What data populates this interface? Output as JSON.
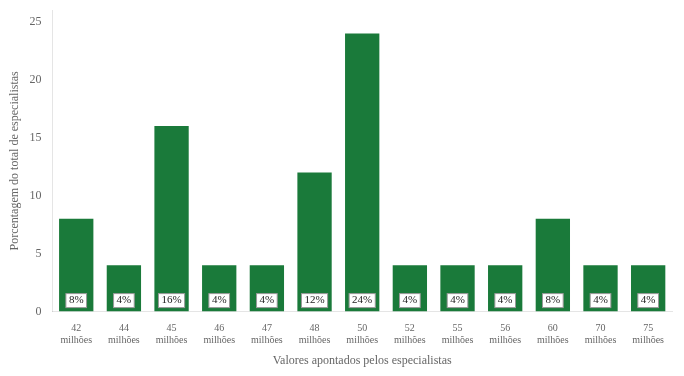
{
  "chart_data": {
    "type": "bar",
    "categories": [
      "42\nmilhões",
      "44\nmilhões",
      "45\nmilhões",
      "46\nmilhões",
      "47\nmilhões",
      "48\nmilhões",
      "50\nmilhões",
      "52\nmilhões",
      "55\nmilhões",
      "56\nmilhões",
      "60\nmilhões",
      "70\nmilhões",
      "75\nmilhões"
    ],
    "values": [
      8,
      4,
      16,
      4,
      4,
      12,
      24,
      4,
      4,
      4,
      8,
      4,
      4
    ],
    "value_labels": [
      "8%",
      "4%",
      "16%",
      "4%",
      "4%",
      "12%",
      "24%",
      "4%",
      "4%",
      "4%",
      "8%",
      "4%",
      "4%"
    ],
    "data_labels": true,
    "color": "#1a7a3a",
    "xlabel": "Valores apontados pelos especialistas",
    "ylabel": "Porcentagem do total de especialistas",
    "ylim": [
      0,
      26
    ],
    "yticks": [
      0,
      5,
      10,
      15,
      20,
      25
    ],
    "grid": false
  }
}
